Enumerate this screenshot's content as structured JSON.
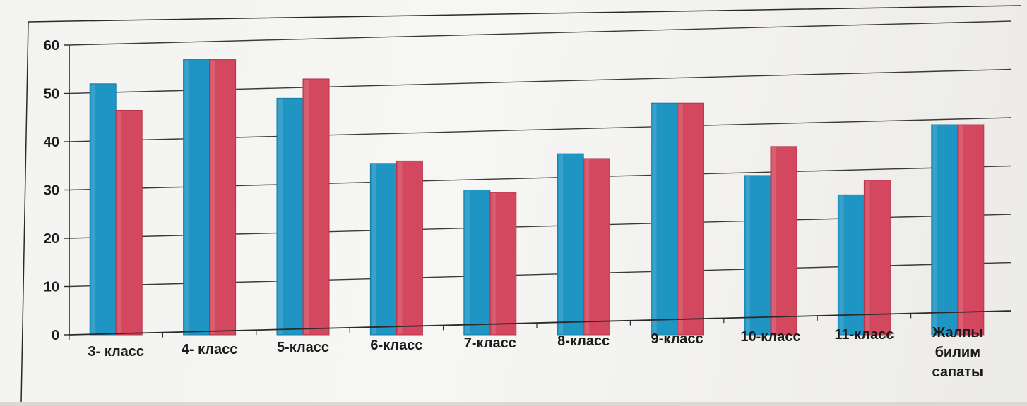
{
  "chart_data": {
    "type": "bar",
    "categories": [
      "3- класс",
      "4- класс",
      "5-класс",
      "6-класс",
      "7-класс",
      "8-класс",
      "9-класс",
      "10-класс",
      "11-класс",
      "Жалпы\nбилим\nсапаты"
    ],
    "series": [
      {
        "values": [
          52,
          57,
          49,
          35.5,
          30,
          37.5,
          48,
          33,
          29,
          43.5
        ],
        "color": "#1f95c3"
      },
      {
        "values": [
          46.5,
          57,
          53,
          36,
          29.5,
          36.5,
          48,
          39,
          32,
          43.5
        ],
        "color": "#d4485f"
      }
    ],
    "ylim": [
      0,
      60
    ],
    "yticks": [
      0,
      10,
      20,
      30,
      40,
      50,
      60
    ],
    "grid": true,
    "title": "",
    "xlabel": "",
    "ylabel": ""
  }
}
